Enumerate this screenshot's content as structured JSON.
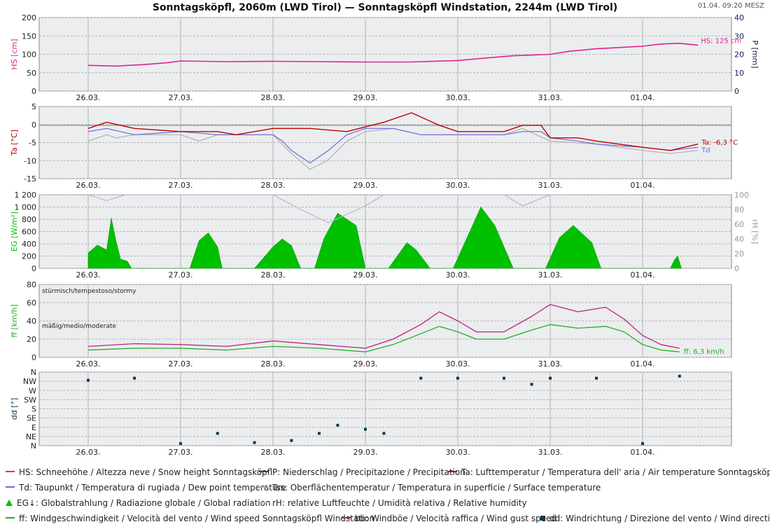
{
  "title": "Sonntagsköpfl, 2060m (LWD Tirol) — Sonntagsköpfl Windstation, 2244m (LWD Tirol)",
  "timestamp": "01.04. 09:20 MESZ",
  "x_ticks": [
    "26.03.",
    "27.03.",
    "28.03.",
    "29.03.",
    "30.03.",
    "31.03.",
    "01.04."
  ],
  "colors": {
    "hs": "#e0238f",
    "ta": "#c00000",
    "td": "#6a6ae0",
    "tss": "#b0b0b0",
    "eg": "#00c000",
    "rh": "#b8b8c8",
    "ff": "#20b020",
    "bb": "#c0207a",
    "dd": "#0b3a52",
    "panel_bg": "#ebedef",
    "grid": "#b4b4b4"
  },
  "chart_data": [
    {
      "type": "line",
      "panel": "snow",
      "ylabel": "HS [cm]",
      "y2label": "P [mm]",
      "ylim": [
        0,
        200
      ],
      "y2lim": [
        0,
        40
      ],
      "yticks": [
        "0",
        "50",
        "100",
        "150",
        "200"
      ],
      "y2ticks": [
        "0",
        "10",
        "20",
        "30",
        "40"
      ],
      "end_label": "HS: 125 cm",
      "series": [
        {
          "key": "hs",
          "x": [
            0,
            0.3,
            0.6,
            0.85,
            1.0,
            1.5,
            2.0,
            2.5,
            3.0,
            3.5,
            4.0,
            4.3,
            4.6,
            5.0,
            5.2,
            5.5,
            6.0,
            6.2,
            6.4,
            6.6
          ],
          "values": [
            70,
            68,
            72,
            77,
            82,
            80,
            81,
            80,
            79,
            79,
            83,
            90,
            96,
            100,
            108,
            115,
            122,
            128,
            130,
            125
          ]
        }
      ]
    },
    {
      "type": "line",
      "panel": "temperature",
      "ylabel": "Ta [°C]",
      "ylim": [
        -17,
        6
      ],
      "yticks": [
        "-15",
        "-10",
        "-5",
        "0",
        "5"
      ],
      "end_labels": [
        "Ta: -6,3 °C",
        "Td"
      ],
      "series": [
        {
          "key": "ta",
          "x": [
            0,
            0.2,
            0.5,
            1.0,
            1.4,
            1.6,
            2.0,
            2.4,
            2.8,
            3.2,
            3.5,
            3.8,
            4.0,
            4.5,
            4.7,
            4.9,
            5.0,
            5.3,
            5.5,
            6.0,
            6.3,
            6.6
          ],
          "values": [
            -1,
            1,
            -1,
            -2,
            -2,
            -3,
            -1,
            -1,
            -2,
            1,
            4,
            0,
            -2,
            -2,
            0,
            0,
            -4,
            -4,
            -5,
            -7,
            -8,
            -6
          ]
        },
        {
          "key": "td",
          "x": [
            0,
            0.2,
            0.5,
            1.0,
            1.4,
            1.6,
            1.8,
            2.0,
            2.1,
            2.2,
            2.4,
            2.6,
            2.8,
            3.0,
            3.3,
            3.6,
            4.0,
            4.5,
            4.7,
            4.9,
            5.0,
            5.3,
            5.5,
            6.0,
            6.3,
            6.6
          ],
          "values": [
            -2,
            -1,
            -3,
            -2,
            -3,
            -3,
            -3,
            -3,
            -5,
            -8,
            -12,
            -8,
            -3,
            -1,
            -1,
            -3,
            -3,
            -3,
            -2,
            -2,
            -4,
            -5,
            -6,
            -7,
            -8,
            -7
          ]
        },
        {
          "key": "tss",
          "x": [
            0,
            0.2,
            0.3,
            0.5,
            1.0,
            1.2,
            1.4,
            1.6,
            1.8,
            2.0,
            2.2,
            2.4,
            2.6,
            2.8,
            3.0,
            3.3,
            3.6,
            4.0,
            4.5,
            4.7,
            5.0,
            5.5,
            6.0,
            6.3,
            6.6
          ],
          "values": [
            -5,
            -3,
            -4,
            -3,
            -3,
            -5,
            -3,
            -3,
            -3,
            -3,
            -9,
            -14,
            -11,
            -5,
            -2,
            -1,
            -3,
            -3,
            -3,
            -1,
            -5,
            -6,
            -8,
            -9,
            -8
          ]
        }
      ]
    },
    {
      "type": "area",
      "panel": "radiation",
      "ylabel": "EG [W/m²]",
      "y2label": "rH [%]",
      "ylim": [
        0,
        1200
      ],
      "y2lim": [
        0,
        100
      ],
      "yticks": [
        "0",
        "200",
        "400",
        "600",
        "800",
        "1 000",
        "1 200"
      ],
      "y2ticks": [
        "0",
        "20",
        "40",
        "60",
        "80",
        "100"
      ],
      "series": [
        {
          "key": "eg",
          "x": [
            0.0,
            0.1,
            0.2,
            0.25,
            0.3,
            0.35,
            0.42,
            0.47,
            1.1,
            1.2,
            1.3,
            1.4,
            1.45,
            1.6,
            1.8,
            2.0,
            2.1,
            2.2,
            2.3,
            2.45,
            2.55,
            2.7,
            2.9,
            3.0,
            3.15,
            3.25,
            3.45,
            3.55,
            3.7,
            3.85,
            3.95,
            4.25,
            4.4,
            4.6,
            4.85,
            4.95,
            5.1,
            5.25,
            5.45,
            5.55,
            5.7,
            5.85,
            6.0,
            6.1,
            6.3,
            6.35,
            6.38,
            6.42
          ],
          "values": [
            250,
            380,
            300,
            820,
            450,
            150,
            120,
            0,
            0,
            450,
            580,
            350,
            0,
            0,
            0,
            350,
            480,
            370,
            0,
            0,
            480,
            900,
            700,
            0,
            0,
            0,
            420,
            300,
            0,
            0,
            0,
            1000,
            700,
            0,
            0,
            0,
            500,
            700,
            420,
            0,
            0,
            0,
            0,
            0,
            0,
            150,
            200,
            0
          ]
        },
        {
          "key": "rh",
          "x": [
            0.0,
            0.2,
            0.4,
            0.6,
            1.0,
            1.6,
            2.0,
            2.3,
            2.6,
            3.0,
            3.2,
            3.6,
            4.0,
            4.5,
            4.7,
            5.0,
            5.2
          ],
          "values": [
            100,
            92,
            100,
            100,
            100,
            100,
            100,
            80,
            62,
            85,
            100,
            100,
            100,
            100,
            85,
            100,
            100
          ]
        }
      ]
    },
    {
      "type": "line",
      "panel": "wind",
      "ylabel": "ff [km/h]",
      "ylim": [
        0,
        80
      ],
      "yticks": [
        "0",
        "20",
        "40",
        "60",
        "80"
      ],
      "zone_labels": [
        "stürmisch/tempestoso/stormy",
        "mäßig/medio/moderate"
      ],
      "end_label": "ff: 6,3 km/h",
      "series": [
        {
          "key": "bb",
          "x": [
            0,
            0.5,
            1.0,
            1.5,
            2.0,
            2.5,
            3.0,
            3.3,
            3.6,
            3.8,
            4.0,
            4.2,
            4.5,
            4.8,
            5.0,
            5.3,
            5.6,
            5.8,
            6.0,
            6.2,
            6.4
          ],
          "values": [
            12,
            15,
            14,
            12,
            18,
            14,
            10,
            20,
            36,
            50,
            40,
            28,
            28,
            45,
            58,
            50,
            55,
            42,
            24,
            14,
            10
          ]
        },
        {
          "key": "ff",
          "x": [
            0,
            0.5,
            1.0,
            1.5,
            2.0,
            2.5,
            3.0,
            3.3,
            3.6,
            3.8,
            4.0,
            4.2,
            4.5,
            4.8,
            5.0,
            5.3,
            5.6,
            5.8,
            6.0,
            6.2,
            6.4
          ],
          "values": [
            8,
            10,
            10,
            8,
            12,
            10,
            6,
            14,
            26,
            34,
            28,
            20,
            20,
            30,
            36,
            32,
            34,
            28,
            14,
            8,
            6
          ]
        }
      ]
    },
    {
      "type": "scatter",
      "panel": "wind_direction",
      "ylabel": "dd [°]",
      "yticks": [
        "N",
        "NE",
        "E",
        "SE",
        "S",
        "SW",
        "W",
        "NW",
        "N"
      ],
      "series": [
        {
          "key": "dd",
          "x": [
            0,
            0.5,
            1.0,
            1.4,
            1.8,
            2.2,
            2.5,
            2.7,
            3.0,
            3.2,
            3.6,
            4.0,
            4.5,
            4.8,
            5.0,
            5.5,
            6.0,
            6.4
          ],
          "values": [
            320,
            330,
            10,
            60,
            15,
            25,
            60,
            100,
            80,
            60,
            330,
            330,
            330,
            300,
            330,
            330,
            10,
            340
          ]
        }
      ]
    }
  ],
  "legend": [
    {
      "key": "hs",
      "kind": "line",
      "text": "HS: Schneehöhe / Altezza neve / Snow height  Sonntagsköpfl"
    },
    {
      "key": "p",
      "kind": "line",
      "text": "P: Niederschlag / Precipitazione / Precipitation"
    },
    {
      "key": "ta",
      "kind": "line",
      "text": "Ta: Lufttemperatur / Temperatura dell' aria / Air temperature  Sonntagsköpfl"
    },
    {
      "key": "td",
      "kind": "line",
      "text": "Td: Taupunkt / Temperatura di rugiada / Dew point temperature"
    },
    {
      "key": "tss",
      "kind": "line",
      "text": "Tss: Oberflächentemperatur / Temperatura in superficie / Surface temperature"
    },
    {
      "key": "eg",
      "kind": "triangle",
      "text": "EG↓: Globalstrahlung / Radiazione globale / Global radiation"
    },
    {
      "key": "rh",
      "kind": "line",
      "text": "rH: relative Luftfeuchte / Umidità relativa / Relative humidity"
    },
    {
      "key": "ff",
      "kind": "line",
      "text": "ff: Windgeschwindigkeit / Velocità del vento / Wind speed  Sonntagsköpfl Windstation"
    },
    {
      "key": "bb",
      "kind": "line",
      "text": "bb: Windböe / Velocità raffica / Wind gust speed"
    },
    {
      "key": "dd",
      "kind": "square",
      "text": "dd: Windrichtung / Direzione del vento / Wind direction"
    }
  ]
}
